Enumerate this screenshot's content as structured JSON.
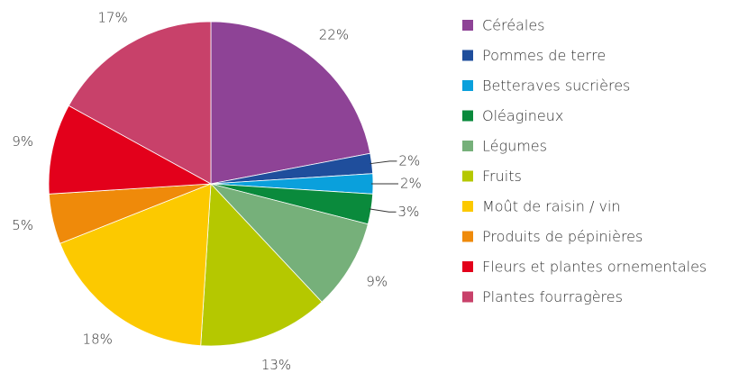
{
  "chart_data": {
    "type": "pie",
    "categories": [
      "Céréales",
      "Pommes de terre",
      "Betteraves sucrières",
      "Oléagineux",
      "Légumes",
      "Fruits",
      "Moût de raisin / vin",
      "Produits de pépinières",
      "Fleurs et plantes ornementales",
      "Plantes fourragères"
    ],
    "values": [
      22,
      2,
      2,
      3,
      9,
      13,
      18,
      5,
      9,
      17
    ],
    "value_labels": [
      "22%",
      "2%",
      "2%",
      "3%",
      "9%",
      "13%",
      "18%",
      "5%",
      "9%",
      "17%"
    ],
    "colors": [
      "#8e4396",
      "#1f4e9c",
      "#0aa0dc",
      "#0a8a3c",
      "#76b07a",
      "#b5c800",
      "#fcc900",
      "#ef8a0a",
      "#e3001b",
      "#c8416a"
    ],
    "legend": "right"
  }
}
